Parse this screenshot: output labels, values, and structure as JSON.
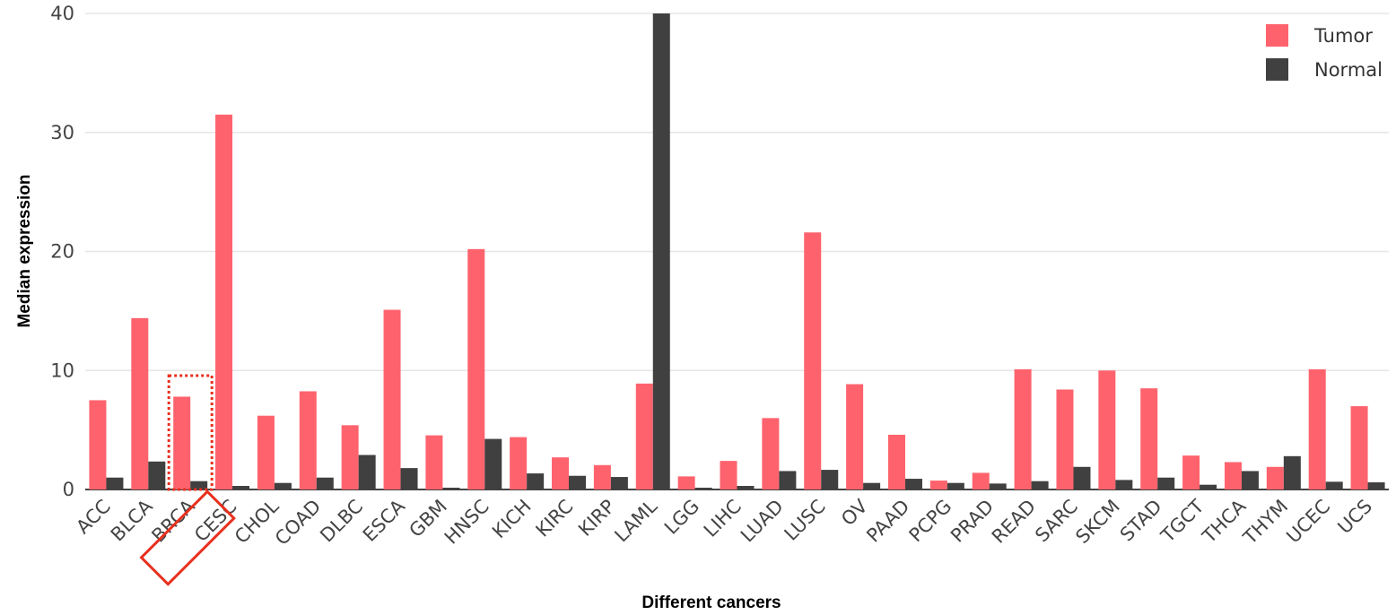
{
  "chart_data": {
    "type": "bar",
    "xlabel": "Different cancers",
    "ylabel": "Median expression",
    "ylim": [
      0,
      40
    ],
    "yticks": [
      0,
      10,
      20,
      30,
      40
    ],
    "grid": true,
    "legend_position": "top-right",
    "categories": [
      "ACC",
      "BLCA",
      "BRCA",
      "CESC",
      "CHOL",
      "COAD",
      "DLBC",
      "ESCA",
      "GBM",
      "HNSC",
      "KICH",
      "KIRC",
      "KIRP",
      "LAML",
      "LGG",
      "LIHC",
      "LUAD",
      "LUSC",
      "OV",
      "PAAD",
      "PCPG",
      "PRAD",
      "READ",
      "SARC",
      "SKCM",
      "STAD",
      "TGCT",
      "THCA",
      "THYM",
      "UCEC",
      "UCS"
    ],
    "series": [
      {
        "name": "Tumor",
        "color": "#fe636d",
        "values": [
          7.5,
          14.4,
          7.8,
          31.5,
          6.2,
          8.25,
          5.4,
          15.1,
          4.55,
          20.2,
          4.4,
          2.7,
          2.05,
          8.9,
          1.1,
          2.4,
          6.0,
          21.6,
          8.85,
          4.6,
          0.75,
          1.4,
          10.1,
          8.4,
          10.0,
          8.5,
          2.85,
          2.3,
          1.9,
          10.1,
          7.0
        ]
      },
      {
        "name": "Normal",
        "color": "#404040",
        "values": [
          1.0,
          2.35,
          0.7,
          0.3,
          0.55,
          1.0,
          2.9,
          1.8,
          0.15,
          4.25,
          1.35,
          1.15,
          1.05,
          40.0,
          0.15,
          0.3,
          1.55,
          1.65,
          0.55,
          0.9,
          0.55,
          0.5,
          0.7,
          1.9,
          0.8,
          1.0,
          0.4,
          1.55,
          2.8,
          0.65,
          0.6
        ]
      }
    ],
    "highlight": {
      "category": "BRCA",
      "color": "#e8301e"
    }
  }
}
